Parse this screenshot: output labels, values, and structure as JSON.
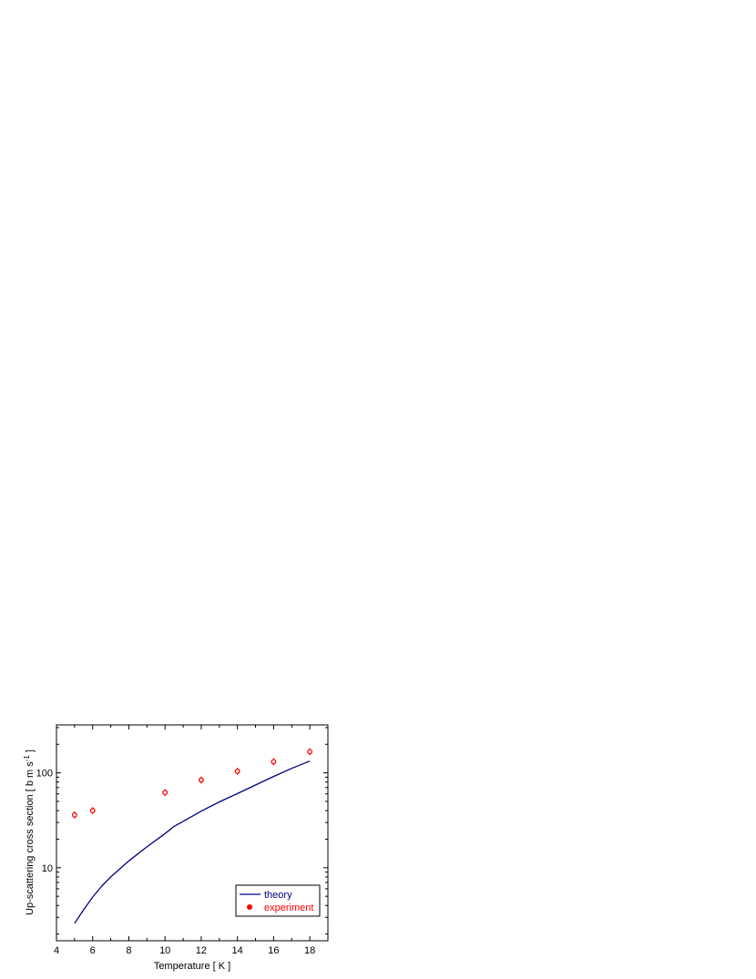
{
  "chart_data": {
    "type": "line",
    "xlabel": "Temperature [ K ]",
    "ylabel_main": "Up-scattering cross section [ b m s",
    "ylabel_sup": "-1",
    "ylabel_end": " ]",
    "xlim": [
      4,
      19
    ],
    "ylim": [
      1.7,
      320
    ],
    "yscale": "log",
    "x_ticks": [
      4,
      6,
      8,
      10,
      12,
      14,
      16,
      18
    ],
    "x_tick_labels": [
      "4",
      "6",
      "8",
      "10",
      "12",
      "14",
      "16",
      "18"
    ],
    "y_ticks": [
      10,
      100
    ],
    "y_tick_labels": [
      "10",
      "100"
    ],
    "legend_position": "bottom-right",
    "series": [
      {
        "name": "theory",
        "kind": "line",
        "color": "#000080",
        "x": [
          5,
          5.5,
          6,
          6.5,
          7,
          8,
          9,
          10,
          10.5,
          11,
          12,
          13,
          14,
          15,
          16,
          17,
          18
        ],
        "y": [
          2.6,
          3.6,
          4.9,
          6.4,
          8.0,
          11.8,
          16.6,
          22.9,
          27.3,
          30.8,
          39.5,
          49.5,
          60.4,
          74.5,
          91.6,
          111.5,
          133.2
        ]
      },
      {
        "name": "experiment",
        "kind": "scatter",
        "color": "#ff0000",
        "x": [
          5,
          6,
          10,
          12,
          14,
          16,
          18
        ],
        "y": [
          36.0,
          40.0,
          62.0,
          84.0,
          104.0,
          131.0,
          167.0
        ]
      }
    ]
  }
}
